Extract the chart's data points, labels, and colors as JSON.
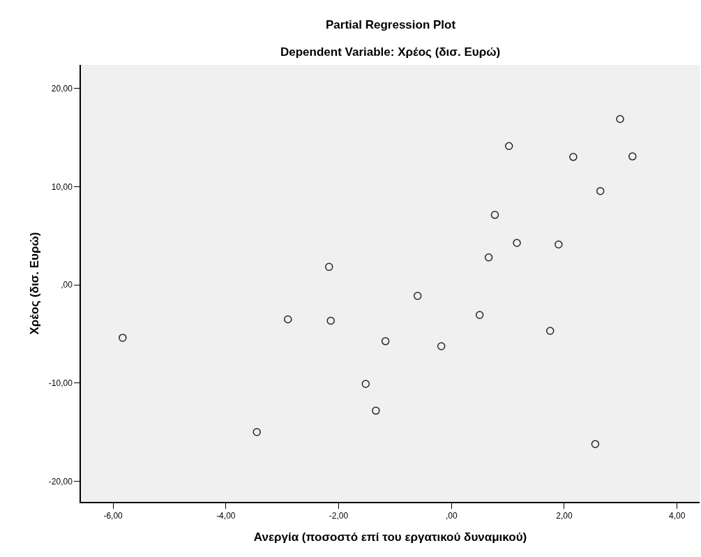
{
  "chart_data": {
    "type": "scatter",
    "title": "Partial Regression Plot",
    "subtitle": "Dependent Variable: Χρέος (δισ. Ευρώ)",
    "xlabel": "Ανεργία (ποσοστό επί του εργατικού δυναμικού)",
    "ylabel": "Χρέος (δισ. Ευρώ)",
    "x": [
      -5.83,
      -3.45,
      -2.9,
      -2.17,
      -2.14,
      -1.52,
      -1.34,
      2.99,
      1.02,
      2.16,
      3.21,
      2.64,
      0.77,
      1.16,
      1.9,
      0.66,
      -0.6,
      0.5,
      1.75,
      -1.17,
      -0.18,
      2.55
    ],
    "values": [
      -5.39,
      -14.99,
      -3.51,
      1.83,
      -3.65,
      -10.09,
      -12.81,
      16.89,
      14.14,
      13.03,
      13.08,
      9.55,
      7.13,
      4.27,
      4.11,
      2.8,
      -1.12,
      -3.07,
      -4.68,
      -5.74,
      -6.25,
      -16.21
    ],
    "color": "#262626",
    "marker": "circle",
    "grid": false,
    "legend": false,
    "xlim": [
      -6.57,
      4.4
    ],
    "ylim": [
      -22.1,
      22.4
    ],
    "xticks": [
      {
        "value": -6,
        "label": "-6,00"
      },
      {
        "value": -4,
        "label": "-4,00"
      },
      {
        "value": -2,
        "label": "-2,00"
      },
      {
        "value": 0,
        "label": ",00"
      },
      {
        "value": 2,
        "label": "2,00"
      },
      {
        "value": 4,
        "label": "4,00"
      }
    ],
    "yticks": [
      {
        "value": -20,
        "label": "-20,00"
      },
      {
        "value": -10,
        "label": "-10,00"
      },
      {
        "value": 0,
        "label": ",00"
      },
      {
        "value": 10,
        "label": "10,00"
      },
      {
        "value": 20,
        "label": "20,00"
      }
    ]
  }
}
